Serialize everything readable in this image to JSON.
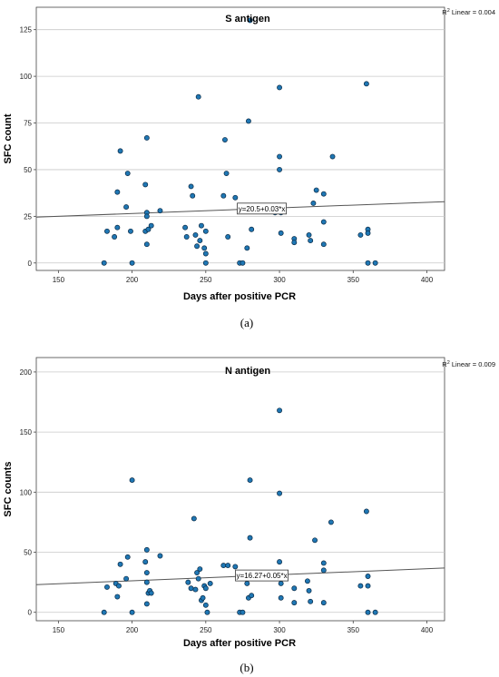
{
  "chart_data": [
    {
      "type": "scatter",
      "title": "S antigen",
      "xlabel": "Days after positive PCR",
      "ylabel": "SFC count",
      "caption": "(a)",
      "r2_text": "R2 Linear = 0.004",
      "fit_label": "y=20.5+0.03*x",
      "fit": {
        "intercept": 20.5,
        "slope": 0.03
      },
      "xlim": [
        135,
        412
      ],
      "ylim": [
        -4,
        137
      ],
      "xticks": [
        150,
        200,
        250,
        300,
        350,
        400
      ],
      "yticks": [
        0,
        25,
        50,
        75,
        100,
        125
      ],
      "grid": "horizontal",
      "marker_color": "#1f77b4",
      "points": [
        [
          181,
          0
        ],
        [
          183,
          17
        ],
        [
          188,
          14
        ],
        [
          190,
          38
        ],
        [
          192,
          60
        ],
        [
          190,
          19
        ],
        [
          197,
          48
        ],
        [
          196,
          30
        ],
        [
          200,
          0
        ],
        [
          199,
          17
        ],
        [
          210,
          67
        ],
        [
          209,
          42
        ],
        [
          210,
          27
        ],
        [
          210,
          25
        ],
        [
          209,
          17
        ],
        [
          211,
          18
        ],
        [
          210,
          10
        ],
        [
          213,
          20
        ],
        [
          219,
          28
        ],
        [
          236,
          19
        ],
        [
          237,
          14
        ],
        [
          240,
          41
        ],
        [
          241,
          36
        ],
        [
          243,
          15
        ],
        [
          244,
          9
        ],
        [
          245,
          89
        ],
        [
          246,
          12
        ],
        [
          247,
          20
        ],
        [
          249,
          8
        ],
        [
          250,
          17
        ],
        [
          250,
          5
        ],
        [
          250,
          0
        ],
        [
          262,
          36
        ],
        [
          263,
          66
        ],
        [
          264,
          48
        ],
        [
          265,
          14
        ],
        [
          270,
          35
        ],
        [
          273,
          0
        ],
        [
          275,
          0
        ],
        [
          278,
          8
        ],
        [
          279,
          76
        ],
        [
          280,
          130
        ],
        [
          281,
          18
        ],
        [
          297,
          27
        ],
        [
          300,
          94
        ],
        [
          300,
          57
        ],
        [
          300,
          50
        ],
        [
          301,
          27
        ],
        [
          301,
          16
        ],
        [
          310,
          13
        ],
        [
          310,
          11
        ],
        [
          320,
          15
        ],
        [
          321,
          12
        ],
        [
          323,
          32
        ],
        [
          325,
          39
        ],
        [
          330,
          37
        ],
        [
          330,
          22
        ],
        [
          330,
          10
        ],
        [
          336,
          57
        ],
        [
          355,
          15
        ],
        [
          359,
          96
        ],
        [
          360,
          18
        ],
        [
          360,
          16
        ],
        [
          360,
          0
        ],
        [
          365,
          0
        ]
      ]
    },
    {
      "type": "scatter",
      "title": "N antigen",
      "xlabel": "Days after positive PCR",
      "ylabel": "SFC counts",
      "caption": "(b)",
      "r2_text": "R2 Linear = 0.009",
      "fit_label": "y=16.27+0.05*x",
      "fit": {
        "intercept": 16.27,
        "slope": 0.05
      },
      "xlim": [
        135,
        412
      ],
      "ylim": [
        -7,
        212
      ],
      "xticks": [
        150,
        200,
        250,
        300,
        350,
        400
      ],
      "yticks": [
        0,
        50,
        100,
        150,
        200
      ],
      "grid": "horizontal",
      "marker_color": "#1f77b4",
      "points": [
        [
          181,
          0
        ],
        [
          183,
          21
        ],
        [
          189,
          24
        ],
        [
          190,
          13
        ],
        [
          192,
          40
        ],
        [
          191,
          22
        ],
        [
          196,
          28
        ],
        [
          197,
          46
        ],
        [
          200,
          110
        ],
        [
          200,
          0
        ],
        [
          210,
          52
        ],
        [
          209,
          42
        ],
        [
          210,
          25
        ],
        [
          210,
          33
        ],
        [
          211,
          16
        ],
        [
          212,
          18
        ],
        [
          210,
          7
        ],
        [
          213,
          16
        ],
        [
          219,
          47
        ],
        [
          238,
          25
        ],
        [
          240,
          20
        ],
        [
          242,
          78
        ],
        [
          243,
          19
        ],
        [
          244,
          33
        ],
        [
          245,
          28
        ],
        [
          246,
          36
        ],
        [
          247,
          10
        ],
        [
          248,
          12
        ],
        [
          249,
          22
        ],
        [
          250,
          20
        ],
        [
          250,
          6
        ],
        [
          251,
          0
        ],
        [
          253,
          24
        ],
        [
          262,
          39
        ],
        [
          265,
          39
        ],
        [
          270,
          38
        ],
        [
          273,
          0
        ],
        [
          275,
          0
        ],
        [
          278,
          24
        ],
        [
          279,
          12
        ],
        [
          280,
          110
        ],
        [
          280,
          62
        ],
        [
          281,
          14
        ],
        [
          298,
          32
        ],
        [
          300,
          168
        ],
        [
          300,
          99
        ],
        [
          300,
          42
        ],
        [
          301,
          24
        ],
        [
          301,
          12
        ],
        [
          310,
          20
        ],
        [
          310,
          8
        ],
        [
          319,
          26
        ],
        [
          320,
          18
        ],
        [
          321,
          9
        ],
        [
          324,
          60
        ],
        [
          330,
          35
        ],
        [
          330,
          41
        ],
        [
          330,
          8
        ],
        [
          335,
          75
        ],
        [
          355,
          22
        ],
        [
          359,
          84
        ],
        [
          360,
          30
        ],
        [
          360,
          22
        ],
        [
          360,
          0
        ],
        [
          365,
          0
        ]
      ]
    }
  ]
}
